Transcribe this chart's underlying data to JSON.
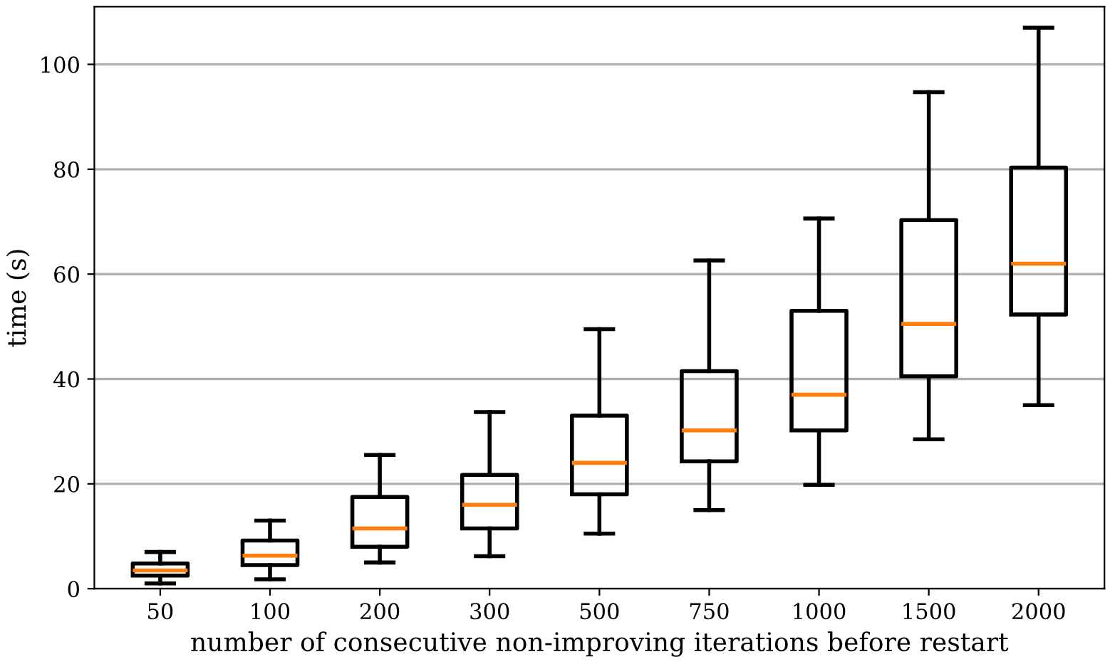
{
  "chart_data": {
    "type": "box",
    "xlabel": "number of consecutive non-improving iterations before restart",
    "ylabel": "time (s)",
    "categories": [
      "50",
      "100",
      "200",
      "300",
      "500",
      "750",
      "1000",
      "1500",
      "2000"
    ],
    "boxes": [
      {
        "low": 1,
        "q1": 2.5,
        "median": 3.5,
        "q3": 4.8,
        "high": 7
      },
      {
        "low": 1.8,
        "q1": 4.5,
        "median": 6.3,
        "q3": 9.2,
        "high": 13
      },
      {
        "low": 5,
        "q1": 8,
        "median": 11.5,
        "q3": 17.5,
        "high": 25.5
      },
      {
        "low": 6.2,
        "q1": 11.5,
        "median": 16,
        "q3": 21.7,
        "high": 33.7
      },
      {
        "low": 10.5,
        "q1": 18,
        "median": 24,
        "q3": 33,
        "high": 49.5
      },
      {
        "low": 15,
        "q1": 24.3,
        "median": 30.2,
        "q3": 41.5,
        "high": 62.6
      },
      {
        "low": 19.8,
        "q1": 30.2,
        "median": 37,
        "q3": 53,
        "high": 70.6
      },
      {
        "low": 28.5,
        "q1": 40.5,
        "median": 50.5,
        "q3": 70.3,
        "high": 94.7
      },
      {
        "low": 35,
        "q1": 52.3,
        "median": 62,
        "q3": 80.3,
        "high": 107
      }
    ],
    "color": "#000000",
    "ylim": [
      0,
      111
    ],
    "yticks": [
      0,
      20,
      40,
      60,
      80,
      100
    ],
    "grid": "y"
  }
}
